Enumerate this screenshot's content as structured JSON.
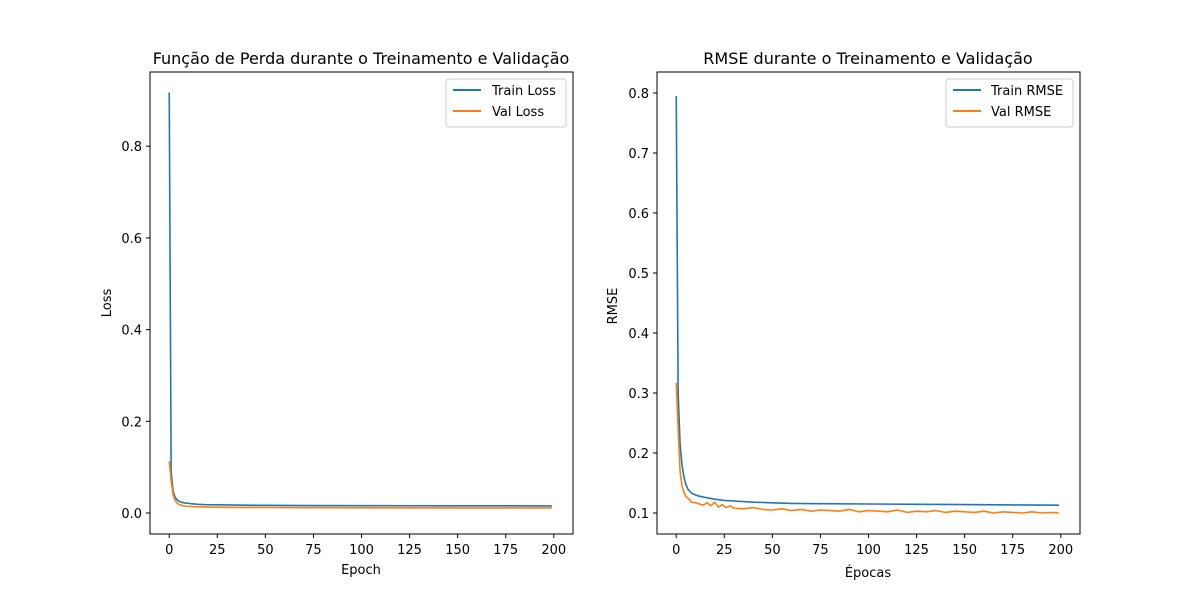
{
  "colors": {
    "train": "#1f77b4",
    "val": "#ff7f0e"
  },
  "chart_data": [
    {
      "type": "line",
      "title": "Função de Perda durante o Treinamento e Validação",
      "xlabel": "Epoch",
      "ylabel": "Loss",
      "xlim": [
        -10,
        210
      ],
      "ylim": [
        -0.0458,
        0.9618
      ],
      "xticks": [
        0,
        25,
        50,
        75,
        100,
        125,
        150,
        175,
        200
      ],
      "yticks": [
        0.0,
        0.2,
        0.4,
        0.6,
        0.8
      ],
      "ytick_labels": [
        "0.0",
        "0.2",
        "0.4",
        "0.6",
        "0.8"
      ],
      "legend": "upper right",
      "grid": false,
      "series": [
        {
          "name": "Train Loss",
          "color_key": "train",
          "x": [
            0,
            1,
            2,
            3,
            4,
            5,
            6,
            8,
            10,
            12,
            15,
            20,
            25,
            30,
            40,
            50,
            60,
            75,
            100,
            125,
            150,
            175,
            199
          ],
          "y": [
            0.917,
            0.09,
            0.048,
            0.035,
            0.029,
            0.026,
            0.024,
            0.022,
            0.021,
            0.02,
            0.019,
            0.018,
            0.0178,
            0.0175,
            0.017,
            0.0167,
            0.0165,
            0.0162,
            0.016,
            0.0158,
            0.0157,
            0.0156,
            0.0155
          ]
        },
        {
          "name": "Val Loss",
          "color_key": "val",
          "x": [
            0,
            1,
            2,
            3,
            4,
            5,
            6,
            8,
            10,
            12,
            15,
            20,
            25,
            30,
            40,
            50,
            60,
            75,
            100,
            125,
            150,
            175,
            199
          ],
          "y": [
            0.113,
            0.07,
            0.04,
            0.028,
            0.022,
            0.019,
            0.017,
            0.015,
            0.0145,
            0.014,
            0.0135,
            0.013,
            0.0128,
            0.0125,
            0.0122,
            0.012,
            0.0118,
            0.0116,
            0.0113,
            0.0112,
            0.0111,
            0.011,
            0.011
          ]
        }
      ]
    },
    {
      "type": "line",
      "title": "RMSE durante o Treinamento e Validação",
      "xlabel": "Épocas",
      "ylabel": "RMSE",
      "xlim": [
        -10,
        210
      ],
      "ylim": [
        0.065,
        0.835
      ],
      "xticks": [
        0,
        25,
        50,
        75,
        100,
        125,
        150,
        175,
        200
      ],
      "yticks": [
        0.1,
        0.2,
        0.3,
        0.4,
        0.5,
        0.6,
        0.7,
        0.8
      ],
      "ytick_labels": [
        "0.1",
        "0.2",
        "0.3",
        "0.4",
        "0.5",
        "0.6",
        "0.7",
        "0.8"
      ],
      "legend": "upper right",
      "grid": false,
      "series": [
        {
          "name": "Train RMSE",
          "color_key": "train",
          "x": [
            0,
            1,
            2,
            3,
            4,
            5,
            6,
            8,
            10,
            12,
            15,
            20,
            25,
            30,
            40,
            50,
            60,
            75,
            100,
            125,
            150,
            175,
            199
          ],
          "y": [
            0.795,
            0.3,
            0.215,
            0.18,
            0.16,
            0.148,
            0.14,
            0.133,
            0.13,
            0.128,
            0.126,
            0.123,
            0.121,
            0.12,
            0.118,
            0.117,
            0.116,
            0.1155,
            0.115,
            0.1145,
            0.114,
            0.1135,
            0.113
          ]
        },
        {
          "name": "Val RMSE",
          "color_key": "val",
          "x": [
            0,
            1,
            2,
            3,
            4,
            5,
            6,
            7,
            8,
            10,
            12,
            14,
            16,
            18,
            20,
            22,
            24,
            26,
            28,
            30,
            35,
            40,
            45,
            50,
            55,
            60,
            65,
            70,
            75,
            80,
            85,
            90,
            95,
            100,
            105,
            110,
            115,
            120,
            125,
            130,
            135,
            140,
            145,
            150,
            155,
            160,
            165,
            170,
            175,
            180,
            185,
            190,
            195,
            199
          ],
          "y": [
            0.317,
            0.24,
            0.17,
            0.145,
            0.135,
            0.128,
            0.125,
            0.122,
            0.118,
            0.117,
            0.115,
            0.113,
            0.117,
            0.112,
            0.118,
            0.11,
            0.114,
            0.109,
            0.112,
            0.108,
            0.107,
            0.109,
            0.106,
            0.105,
            0.107,
            0.104,
            0.106,
            0.103,
            0.105,
            0.104,
            0.103,
            0.106,
            0.102,
            0.104,
            0.103,
            0.102,
            0.105,
            0.101,
            0.103,
            0.102,
            0.104,
            0.101,
            0.103,
            0.102,
            0.101,
            0.103,
            0.1,
            0.102,
            0.101,
            0.1,
            0.102,
            0.1,
            0.101,
            0.1
          ]
        }
      ]
    }
  ]
}
